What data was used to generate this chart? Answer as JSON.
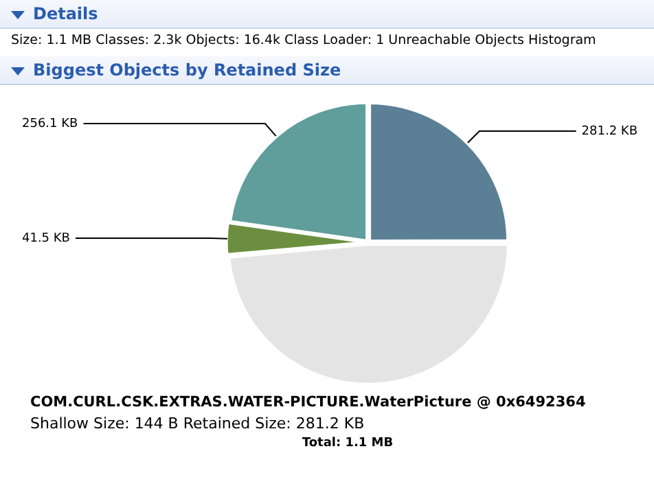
{
  "chart_data": {
    "type": "pie",
    "title": "Biggest Objects by Retained Size",
    "annotations": [
      "Details",
      "Size: 1.1 MB Classes: 2.3k Objects: 16.4k Class Loader: 1 Unreachable Objects Histogram",
      "COM.CURL.CSK.EXTRAS.WATER-PICTURE.WaterPicture @ 0x6492364",
      "Shallow Size: 144 B Retained Size: 281.2 KB",
      "Total: 1.1 MB"
    ],
    "categories": [
      null,
      null,
      null,
      null
    ],
    "values": [
      281.2,
      547,
      41.5,
      256.1
    ],
    "colors": [
      "#5b8096",
      "#e4e4e4",
      "#6b8f3f",
      "#5f9e9a"
    ],
    "value_labels": [
      "281.2 KB",
      null,
      "41.5 KB",
      "256.1 KB"
    ],
    "legend": false
  }
}
